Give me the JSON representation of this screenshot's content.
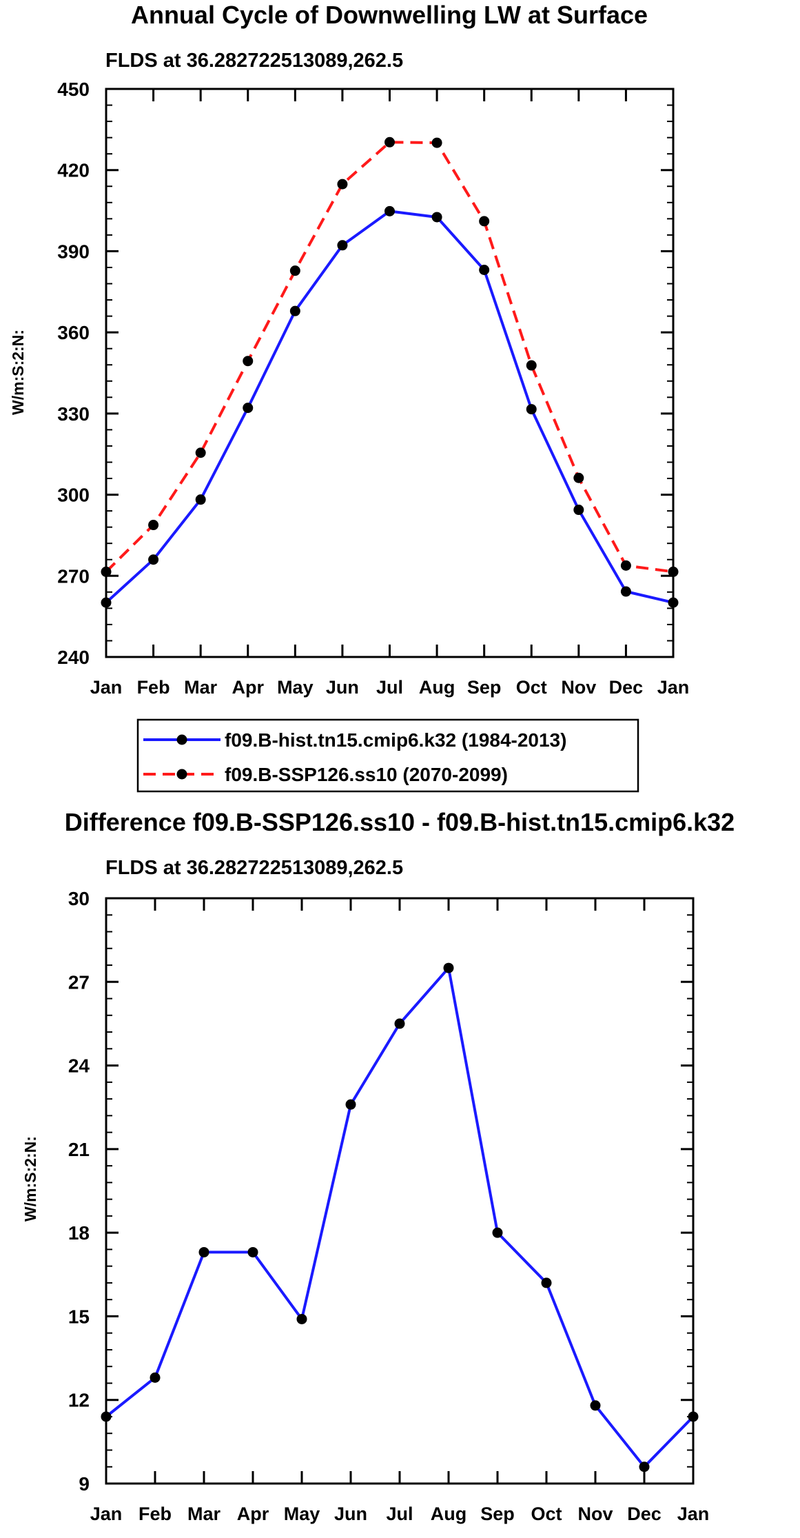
{
  "chart_data": [
    {
      "type": "line",
      "title": "Annual Cycle of Downwelling LW at Surface",
      "subtitle": "FLDS at 36.282722513089,262.5",
      "ylabel": "W/m:S:2:N:",
      "xlabel": "",
      "ylim": [
        240,
        450
      ],
      "yticks": [
        240,
        270,
        300,
        330,
        360,
        390,
        420,
        450
      ],
      "categories": [
        "Jan",
        "Feb",
        "Mar",
        "Apr",
        "May",
        "Jun",
        "Jul",
        "Aug",
        "Sep",
        "Oct",
        "Nov",
        "Dec",
        "Jan"
      ],
      "series": [
        {
          "name": "f09.B-hist.tn15.cmip6.k32 (1984-2013)",
          "color": "#1a1aff",
          "dash": "solid",
          "values": [
            260.1,
            276.0,
            298.2,
            332.1,
            367.9,
            392.2,
            404.8,
            402.6,
            383.1,
            331.6,
            294.4,
            264.2,
            260.1
          ]
        },
        {
          "name": "f09.B-SSP126.ss10 (2070-2099)",
          "color": "#ff1a1a",
          "dash": "dashed",
          "values": [
            271.5,
            288.8,
            315.5,
            349.4,
            382.8,
            414.8,
            430.3,
            430.1,
            401.1,
            347.8,
            306.2,
            273.8,
            271.5
          ]
        }
      ]
    },
    {
      "type": "line",
      "title": "Difference f09.B-SSP126.ss10 - f09.B-hist.tn15.cmip6.k32",
      "subtitle": "FLDS at 36.282722513089,262.5",
      "ylabel": "W/m:S:2:N:",
      "xlabel": "",
      "ylim": [
        9,
        30
      ],
      "yticks": [
        9,
        12,
        15,
        18,
        21,
        24,
        27,
        30
      ],
      "categories": [
        "Jan",
        "Feb",
        "Mar",
        "Apr",
        "May",
        "Jun",
        "Jul",
        "Aug",
        "Sep",
        "Oct",
        "Nov",
        "Dec",
        "Jan"
      ],
      "series": [
        {
          "name": "difference",
          "color": "#1a1aff",
          "dash": "solid",
          "values": [
            11.4,
            12.8,
            17.3,
            17.3,
            14.9,
            22.6,
            25.5,
            27.5,
            18.0,
            16.2,
            11.8,
            9.6,
            11.4
          ]
        }
      ]
    }
  ]
}
